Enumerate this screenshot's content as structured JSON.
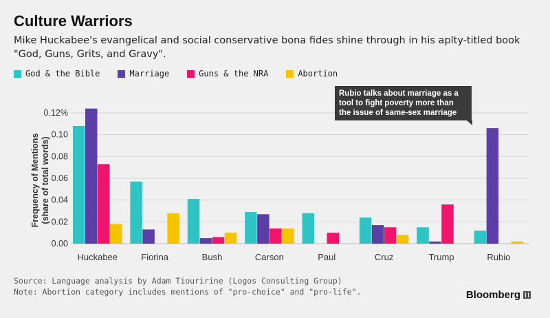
{
  "title": "Culture Warriors",
  "subtitle": "Mike Huckabee's evangelical and social conservative bona fides shine through in his aplty-titled book \"God, Guns, Grits, and Gravy\".",
  "legend": [
    {
      "label": "God & the Bible",
      "color": "#2ec4c4"
    },
    {
      "label": "Marriage",
      "color": "#5b3ea6"
    },
    {
      "label": "Guns & the NRA",
      "color": "#f0146c"
    },
    {
      "label": "Abortion",
      "color": "#f5c400"
    }
  ],
  "annotation": {
    "text": "Rubio talks about marriage as a tool to fight poverty more than the issue of same-sex marriage"
  },
  "footer": {
    "source": "Source: Language analysis by Adam Tiouririne (Logos Consulting Group)",
    "note": "Note: Abortion category includes mentions of \"pro-choice\" and \"pro-life\"."
  },
  "brand": "Bloomberg",
  "chart_data": {
    "type": "bar",
    "ylabel_line1": "Frequency of Mentions",
    "ylabel_line2": "(share of total words)",
    "ylim": [
      0,
      0.12
    ],
    "yticks": [
      "0.12%",
      "0.10",
      "0.08",
      "0.06",
      "0.04",
      "0.02",
      "0.00"
    ],
    "grid": true,
    "legend_position": "top-left",
    "categories": [
      "Huckabee",
      "Fiorina",
      "Bush",
      "Carson",
      "Paul",
      "Cruz",
      "Trump",
      "Rubio"
    ],
    "series": [
      {
        "name": "God & the Bible",
        "color": "#2ec4c4",
        "values": [
          0.108,
          0.057,
          0.041,
          0.029,
          0.028,
          0.024,
          0.015,
          0.012
        ]
      },
      {
        "name": "Marriage",
        "color": "#5b3ea6",
        "values": [
          0.124,
          0.013,
          0.005,
          0.027,
          0.0,
          0.017,
          0.002,
          0.106
        ]
      },
      {
        "name": "Guns & the NRA",
        "color": "#f0146c",
        "values": [
          0.073,
          0.0,
          0.006,
          0.014,
          0.01,
          0.015,
          0.036,
          0.0
        ]
      },
      {
        "name": "Abortion",
        "color": "#f5c400",
        "values": [
          0.018,
          0.028,
          0.01,
          0.014,
          0.0,
          0.008,
          0.0,
          0.002
        ]
      }
    ]
  }
}
